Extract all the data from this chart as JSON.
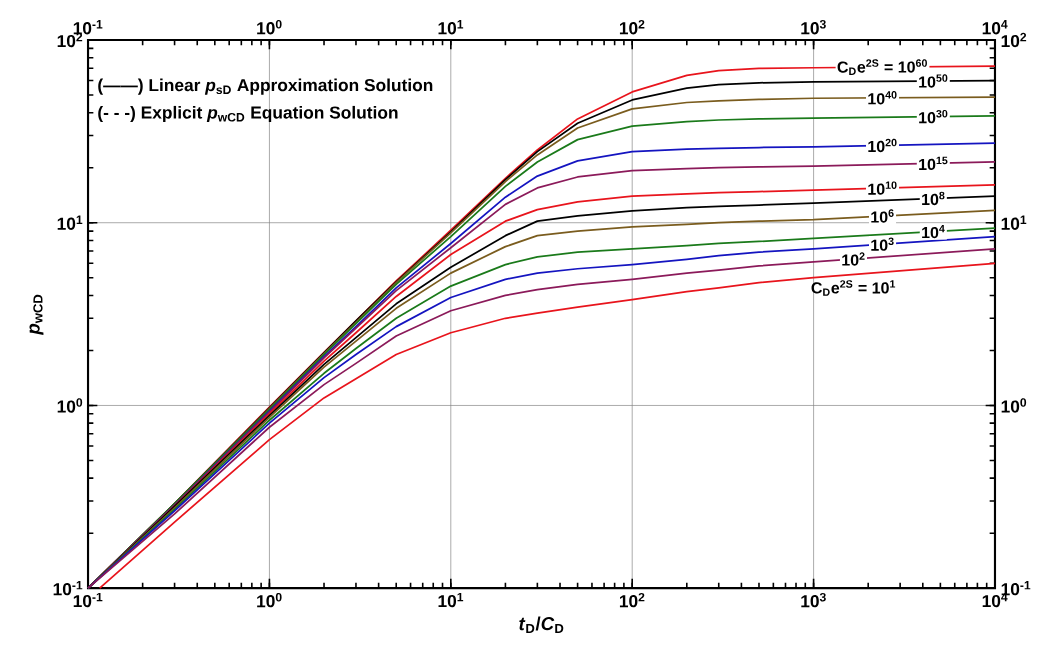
{
  "chart_data": {
    "type": "line",
    "xlabel": "*t*$_{D}$/*C*$_{D}$",
    "ylabel": "*p*$_{wCD}$",
    "log": "xy",
    "grid": true,
    "line_style": "solid",
    "xlim": [
      0.1,
      10000
    ],
    "ylim": [
      0.1,
      100
    ],
    "xticks": [
      {
        "value": 0.1,
        "label": "10$^{-1}$"
      },
      {
        "value": 1,
        "label": "10$^{0}$"
      },
      {
        "value": 10,
        "label": "10$^{1}$"
      },
      {
        "value": 100,
        "label": "10$^{2}$"
      },
      {
        "value": 1000,
        "label": "10$^{3}$"
      },
      {
        "value": 10000,
        "label": "10$^{4}$"
      }
    ],
    "yticks": [
      {
        "value": 0.1,
        "label": "10$^{-1}$"
      },
      {
        "value": 1,
        "label": "10$^{0}$"
      },
      {
        "value": 10,
        "label": "10$^{1}$"
      },
      {
        "value": 100,
        "label": "10$^{2}$"
      }
    ],
    "annotations": [
      "(——) Linear *p*$_{sD}$ Approximation Solution",
      "(- - -) Explicit *p*$_{wCD}$ Equation Solution"
    ],
    "x": [
      0.1,
      0.3,
      1,
      2,
      3,
      5,
      10,
      20,
      30,
      50,
      100,
      200,
      300,
      500,
      1000,
      10000
    ],
    "series": [
      {
        "name": "C$_{D}$e$^{2S}$ = 10$^{60}$",
        "color": "#e8141c",
        "values": [
          0.1,
          0.29,
          0.98,
          1.95,
          2.9,
          4.8,
          9.1,
          17.5,
          25,
          37,
          52,
          64,
          68,
          70,
          70.5,
          72
        ]
      },
      {
        "name": "10$^{50}$",
        "color": "#000000",
        "values": [
          0.1,
          0.29,
          0.97,
          1.94,
          2.9,
          4.75,
          8.9,
          17.2,
          24.5,
          35,
          47,
          54.5,
          57,
          58.3,
          59,
          60
        ]
      },
      {
        "name": "10$^{40}$",
        "color": "#7a5c1e",
        "values": [
          0.1,
          0.29,
          0.96,
          1.92,
          2.85,
          4.7,
          8.8,
          16.8,
          23.5,
          33,
          42,
          45.5,
          46.5,
          47.3,
          48,
          48.7
        ]
      },
      {
        "name": "10$^{30}$",
        "color": "#1a7a1a",
        "values": [
          0.1,
          0.29,
          0.95,
          1.9,
          2.8,
          4.6,
          8.4,
          15.8,
          21.5,
          28.5,
          33.8,
          35.8,
          36.5,
          37,
          37.4,
          38.4
        ]
      },
      {
        "name": "10$^{20}$",
        "color": "#1414c0",
        "values": [
          0.1,
          0.285,
          0.93,
          1.85,
          2.7,
          4.4,
          7.7,
          13.8,
          18,
          21.8,
          24.5,
          25.3,
          25.5,
          25.8,
          26,
          27.3
        ]
      },
      {
        "name": "10$^{15}$",
        "color": "#8b1a5a",
        "values": [
          0.1,
          0.285,
          0.92,
          1.82,
          2.65,
          4.25,
          7.3,
          12.6,
          15.5,
          17.8,
          19.3,
          19.8,
          20,
          20.2,
          20.4,
          21.5
        ]
      },
      {
        "name": "10$^{10}$",
        "color": "#e8141c",
        "values": [
          0.1,
          0.28,
          0.9,
          1.75,
          2.5,
          3.95,
          6.7,
          10.2,
          11.8,
          13,
          14,
          14.4,
          14.6,
          14.8,
          15.1,
          16.1
        ]
      },
      {
        "name": "10$^{8}$",
        "color": "#000000",
        "values": [
          0.1,
          0.28,
          0.88,
          1.68,
          2.35,
          3.6,
          5.7,
          8.5,
          10.2,
          10.9,
          11.6,
          12.1,
          12.3,
          12.5,
          12.8,
          14
        ]
      },
      {
        "name": "10$^{6}$",
        "color": "#7a5c1e",
        "values": [
          0.1,
          0.275,
          0.86,
          1.62,
          2.25,
          3.4,
          5.3,
          7.4,
          8.5,
          9.0,
          9.5,
          9.8,
          10,
          10.2,
          10.4,
          11.7
        ]
      },
      {
        "name": "10$^{4}$",
        "color": "#1a7a1a",
        "values": [
          0.1,
          0.27,
          0.83,
          1.5,
          2.05,
          3.0,
          4.5,
          5.9,
          6.5,
          6.9,
          7.2,
          7.5,
          7.7,
          7.9,
          8.2,
          9.35
        ]
      },
      {
        "name": "10$^{3}$",
        "color": "#1414c0",
        "values": [
          0.1,
          0.265,
          0.8,
          1.42,
          1.9,
          2.7,
          3.9,
          4.9,
          5.3,
          5.6,
          5.9,
          6.3,
          6.6,
          6.9,
          7.2,
          8.4
        ]
      },
      {
        "name": "10$^{2}$",
        "color": "#8b1a5a",
        "values": [
          0.1,
          0.255,
          0.76,
          1.3,
          1.7,
          2.4,
          3.3,
          4.0,
          4.3,
          4.6,
          4.9,
          5.3,
          5.5,
          5.8,
          6.1,
          7.2
        ]
      },
      {
        "name": "C$_{D}$e$^{2S}$ = 10$^{1}$",
        "color": "#e8141c",
        "x": [
          0.116,
          0.3,
          1,
          2,
          3,
          5,
          10,
          20,
          30,
          50,
          100,
          200,
          300,
          500,
          1000,
          10000
        ],
        "values": [
          0.1,
          0.23,
          0.65,
          1.1,
          1.4,
          1.9,
          2.5,
          3.0,
          3.2,
          3.45,
          3.8,
          4.2,
          4.4,
          4.7,
          5.0,
          6.0
        ]
      }
    ]
  }
}
